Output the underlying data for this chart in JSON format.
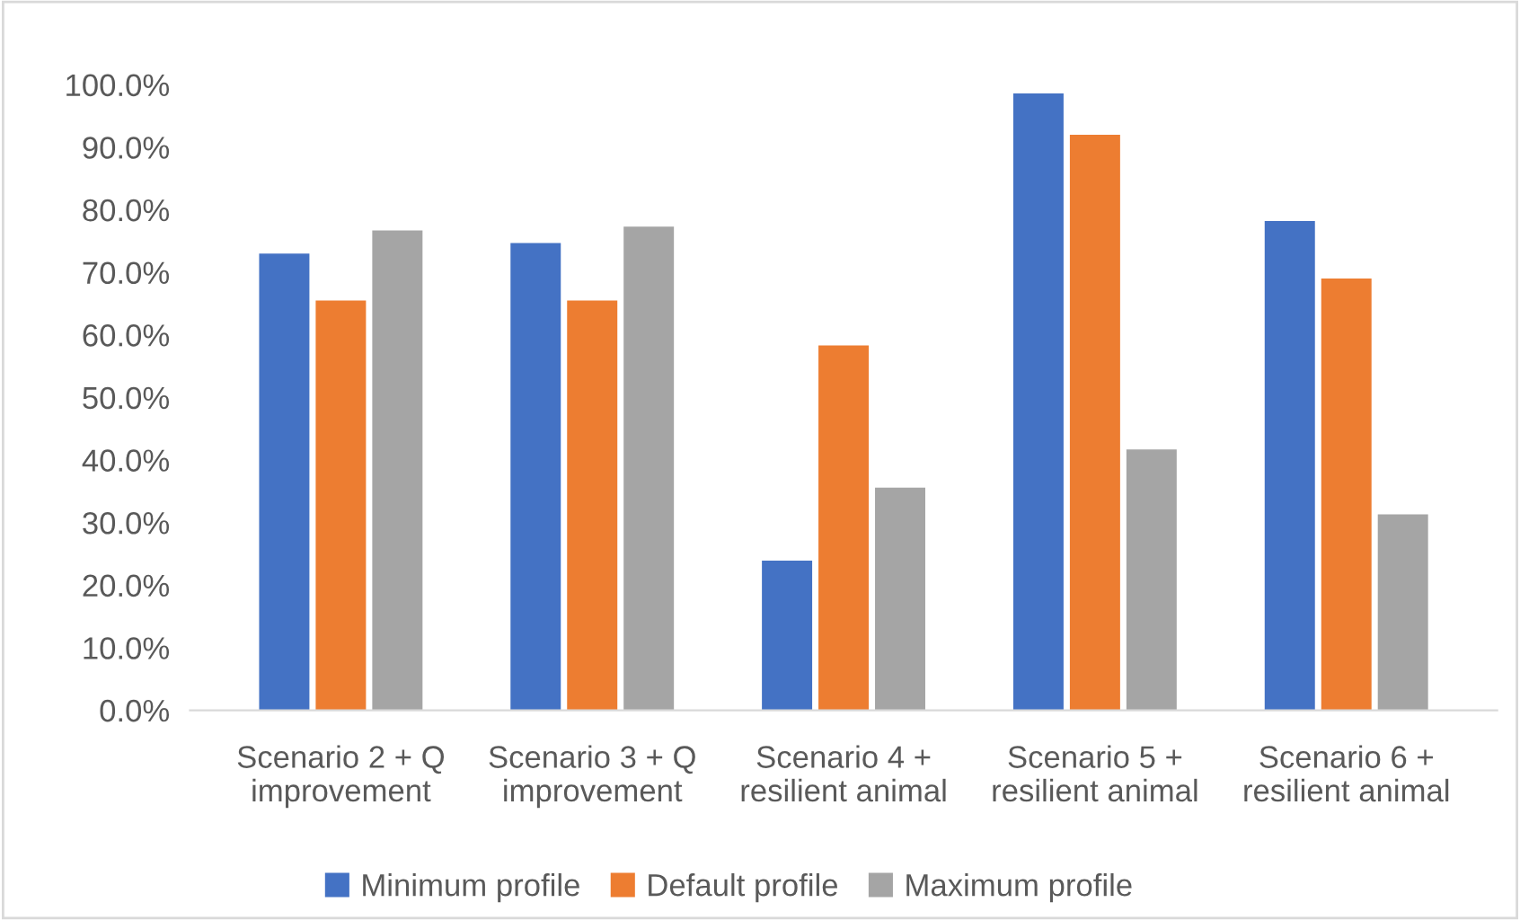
{
  "chart_data": {
    "type": "bar",
    "categories": [
      "Scenario 2 + Q\nimprovement",
      "Scenario 3 + Q\nimprovement",
      "Scenario 4 +\nresilient animal",
      "Scenario 5 +\nresilient animal",
      "Scenario 6 +\nresilient animal"
    ],
    "series": [
      {
        "name": "Minimum profile",
        "color": "#4472c4",
        "values": [
          73.0,
          74.7,
          23.9,
          98.6,
          78.2
        ]
      },
      {
        "name": "Default profile",
        "color": "#ed7d31",
        "values": [
          65.5,
          65.5,
          58.3,
          92.0,
          69.0
        ]
      },
      {
        "name": "Maximum profile",
        "color": "#a5a5a5",
        "values": [
          76.7,
          77.3,
          35.6,
          41.7,
          31.3
        ]
      }
    ],
    "ylim": [
      0,
      100
    ],
    "yticks": [
      {
        "value": 0,
        "label": "0.0%"
      },
      {
        "value": 10,
        "label": "10.0%"
      },
      {
        "value": 20,
        "label": "20.0%"
      },
      {
        "value": 30,
        "label": "30.0%"
      },
      {
        "value": 40,
        "label": "40.0%"
      },
      {
        "value": 50,
        "label": "50.0%"
      },
      {
        "value": 60,
        "label": "60.0%"
      },
      {
        "value": 70,
        "label": "70.0%"
      },
      {
        "value": 80,
        "label": "80.0%"
      },
      {
        "value": 90,
        "label": "90.0%"
      },
      {
        "value": 100,
        "label": "100.0%"
      }
    ],
    "grid": false,
    "legend": "bottom"
  }
}
